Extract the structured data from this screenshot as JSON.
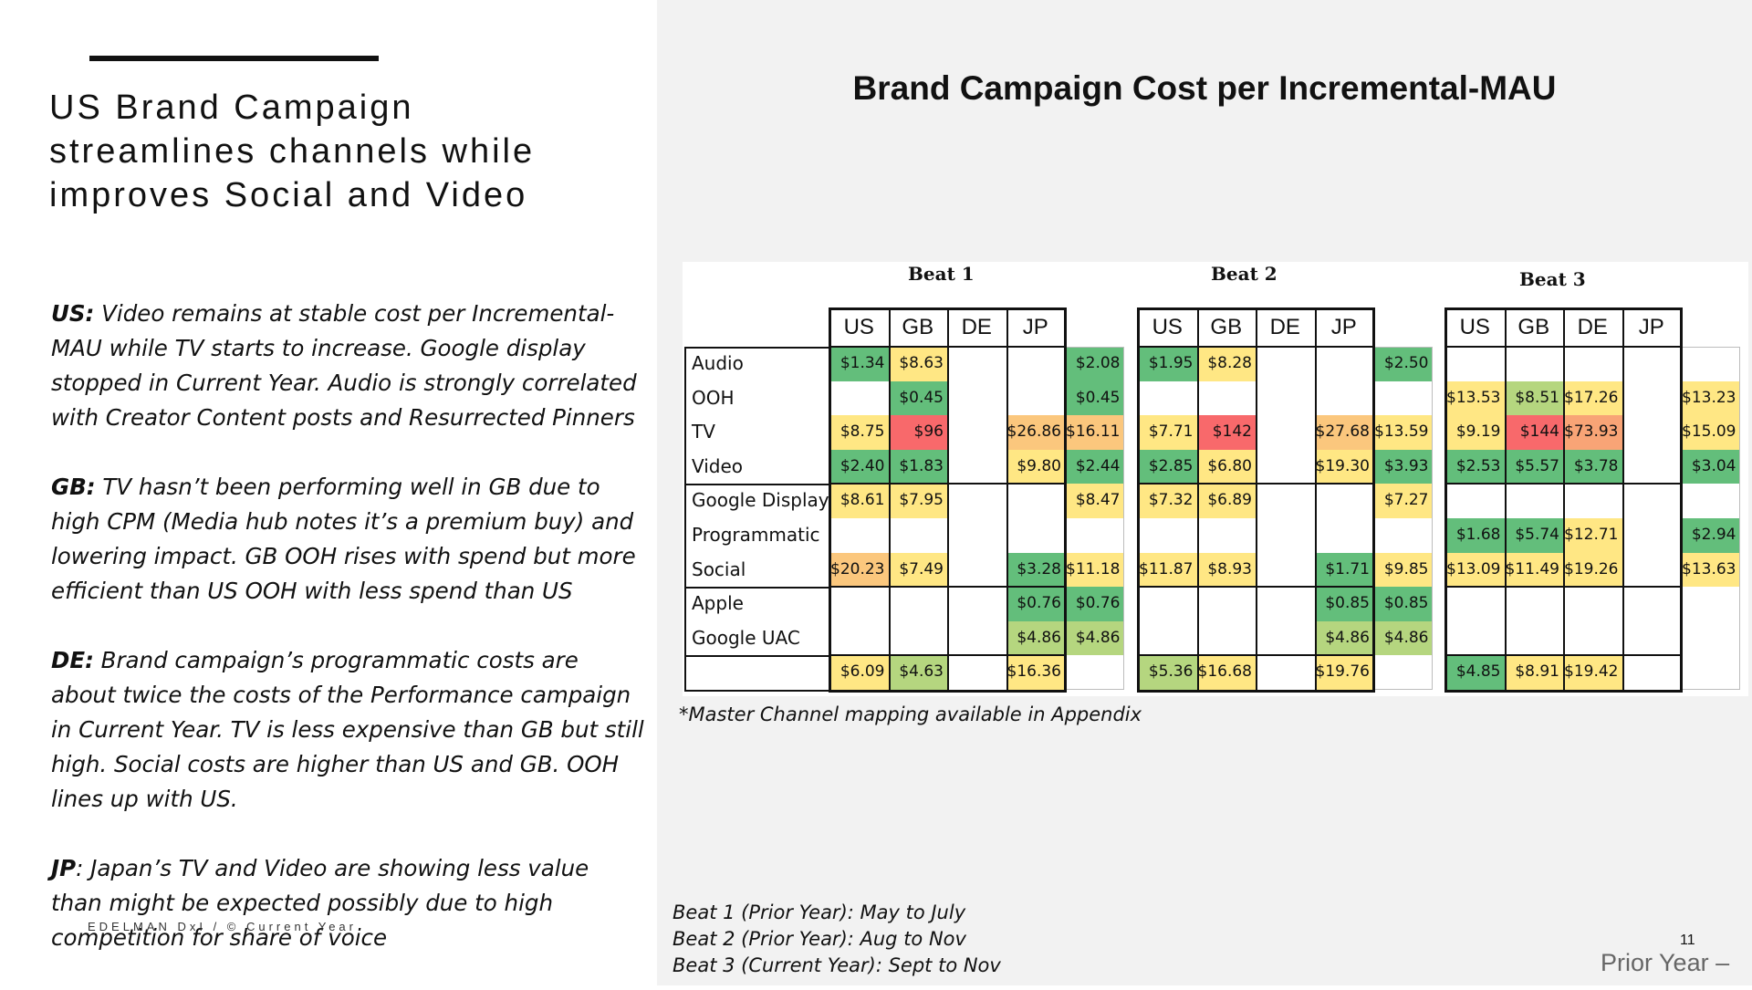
{
  "slide": {
    "title": "US Brand Campaign streamlines channels while improves Social and Video",
    "footer_brand": "EDELMAN DxI / © Current Year",
    "page_number": "11",
    "prior_year_label": "Prior Year –"
  },
  "bullets": [
    {
      "label": "US:",
      "text": " Video remains at stable cost per Incremental-MAU while TV starts to increase. Google display stopped in Current Year. Audio is strongly correlated with Creator Content posts and Resurrected Pinners"
    },
    {
      "label": "GB:",
      "text": " TV hasn’t been performing well in GB due to high CPM (Media hub notes it’s a premium buy) and lowering impact. GB OOH rises with spend but more efficient than US OOH with less spend than US"
    },
    {
      "label": "DE:",
      "text": " Brand campaign’s programmatic costs are about twice the costs of the Performance campaign in Current Year. TV is less expensive than GB but still high. Social costs are higher than US and GB. OOH lines up with US."
    },
    {
      "label": "JP",
      "text": ": Japan’s TV and Video are showing less value than might be expected possibly due to high competition for share of voice"
    }
  ],
  "chart": {
    "title": "Brand Campaign Cost per Incremental-MAU",
    "footnote": "*Master Channel mapping available in Appendix",
    "beat_ranges": [
      "Beat 1 (Prior Year): May to July",
      "Beat 2 (Prior Year): Aug to Nov",
      "Beat 3 (Current Year): Sept to Nov"
    ]
  },
  "colors": {
    "dark_green": "#63be7b",
    "light_green": "#b5d67f",
    "yellow": "#ffe784",
    "orange": "#fbc77d",
    "deep_orange": "#f8a476",
    "red": "#f8696b",
    "frame": "#111111"
  },
  "chart_data": {
    "type": "table",
    "title": "Brand Campaign Cost per Incremental-MAU",
    "rows": [
      "Audio",
      "OOH",
      "TV",
      "Video",
      "Google Display",
      "Programmatic",
      "Social",
      "Apple",
      "Google UAC",
      ""
    ],
    "columns": [
      "US",
      "GB",
      "DE",
      "JP",
      ""
    ],
    "beats": [
      {
        "name": "Beat 1",
        "cells": [
          [
            "$1.34",
            "$8.63",
            "",
            "",
            "$2.08"
          ],
          [
            "",
            "$0.45",
            "",
            "",
            "$0.45"
          ],
          [
            "$8.75",
            "$96",
            "",
            "$26.86",
            "$16.11"
          ],
          [
            "$2.40",
            "$1.83",
            "",
            "$9.80",
            "$2.44"
          ],
          [
            "$8.61",
            "$7.95",
            "",
            "",
            "$8.47"
          ],
          [
            "",
            "",
            "",
            "",
            ""
          ],
          [
            "$20.23",
            "$7.49",
            "",
            "$3.28",
            "$11.18"
          ],
          [
            "",
            "",
            "",
            "$0.76",
            "$0.76"
          ],
          [
            "",
            "",
            "",
            "$4.86",
            "$4.86"
          ],
          [
            "$6.09",
            "$4.63",
            "",
            "$16.36",
            ""
          ]
        ],
        "colors": [
          [
            "dg",
            "y",
            "",
            "",
            "dg"
          ],
          [
            "",
            "dg",
            "",
            "",
            "dg"
          ],
          [
            "y",
            "r",
            "",
            "o",
            "o"
          ],
          [
            "dg",
            "dg",
            "",
            "y",
            "dg"
          ],
          [
            "y",
            "y",
            "",
            "",
            "y"
          ],
          [
            "",
            "",
            "",
            "",
            ""
          ],
          [
            "o",
            "y",
            "",
            "dg",
            "y"
          ],
          [
            "",
            "",
            "",
            "dg",
            "dg"
          ],
          [
            "",
            "",
            "",
            "lg",
            "lg"
          ],
          [
            "y",
            "lg",
            "",
            "y",
            ""
          ]
        ]
      },
      {
        "name": "Beat 2",
        "cells": [
          [
            "$1.95",
            "$8.28",
            "",
            "",
            "$2.50"
          ],
          [
            "",
            "",
            "",
            "",
            ""
          ],
          [
            "$7.71",
            "$142",
            "",
            "$27.68",
            "$13.59"
          ],
          [
            "$2.85",
            "$6.80",
            "",
            "$19.30",
            "$3.93"
          ],
          [
            "$7.32",
            "$6.89",
            "",
            "",
            "$7.27"
          ],
          [
            "",
            "",
            "",
            "",
            ""
          ],
          [
            "$11.87",
            "$8.93",
            "",
            "$1.71",
            "$9.85"
          ],
          [
            "",
            "",
            "",
            "$0.85",
            "$0.85"
          ],
          [
            "",
            "",
            "",
            "$4.86",
            "$4.86"
          ],
          [
            "$5.36",
            "$16.68",
            "",
            "$19.76",
            ""
          ]
        ],
        "colors": [
          [
            "dg",
            "y",
            "",
            "",
            "dg"
          ],
          [
            "",
            "",
            "",
            "",
            ""
          ],
          [
            "y",
            "r",
            "",
            "o",
            "y"
          ],
          [
            "dg",
            "y",
            "",
            "y",
            "dg"
          ],
          [
            "y",
            "y",
            "",
            "",
            "y"
          ],
          [
            "",
            "",
            "",
            "",
            ""
          ],
          [
            "y",
            "y",
            "",
            "dg",
            "y"
          ],
          [
            "",
            "",
            "",
            "dg",
            "dg"
          ],
          [
            "",
            "",
            "",
            "lg",
            "lg"
          ],
          [
            "lg",
            "y",
            "",
            "y",
            ""
          ]
        ]
      },
      {
        "name": "Beat 3",
        "cells": [
          [
            "",
            "",
            "",
            "",
            ""
          ],
          [
            "$13.53",
            "$8.51",
            "$17.26",
            "",
            "$13.23"
          ],
          [
            "$9.19",
            "$144",
            "$73.93",
            "",
            "$15.09"
          ],
          [
            "$2.53",
            "$5.57",
            "$3.78",
            "",
            "$3.04"
          ],
          [
            "",
            "",
            "",
            "",
            ""
          ],
          [
            "$1.68",
            "$5.74",
            "$12.71",
            "",
            "$2.94"
          ],
          [
            "$13.09",
            "$11.49",
            "$19.26",
            "",
            "$13.63"
          ],
          [
            "",
            "",
            "",
            "",
            ""
          ],
          [
            "",
            "",
            "",
            "",
            ""
          ],
          [
            "$4.85",
            "$8.91",
            "$19.42",
            "",
            ""
          ]
        ],
        "colors": [
          [
            "",
            "",
            "",
            "",
            ""
          ],
          [
            "y",
            "lg",
            "y",
            "",
            "y"
          ],
          [
            "y",
            "r",
            "do",
            "",
            "y"
          ],
          [
            "dg",
            "dg",
            "dg",
            "",
            "dg"
          ],
          [
            "",
            "",
            "",
            "",
            ""
          ],
          [
            "dg",
            "dg",
            "y",
            "",
            "dg"
          ],
          [
            "y",
            "y",
            "y",
            "",
            "y"
          ],
          [
            "",
            "",
            "",
            "",
            ""
          ],
          [
            "",
            "",
            "",
            "",
            ""
          ],
          [
            "dg",
            "y",
            "y",
            "",
            ""
          ]
        ]
      }
    ]
  }
}
